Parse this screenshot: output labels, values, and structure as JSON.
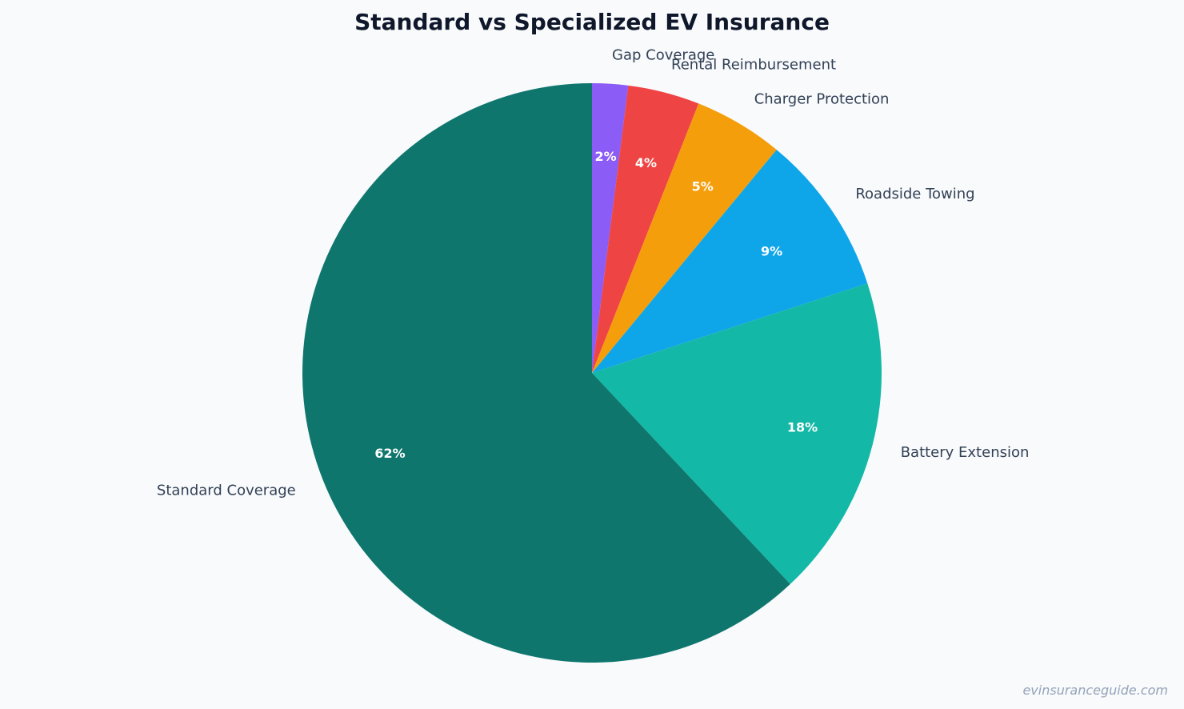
{
  "chart_data": {
    "type": "pie",
    "title": "Standard vs Specialized EV Insurance",
    "start_angle_deg": 90,
    "direction": "clockwise",
    "slices": [
      {
        "label": "Gap Coverage",
        "value": 2,
        "pct_label": "2%",
        "color": "#8b5cf6"
      },
      {
        "label": "Rental Reimbursement",
        "value": 4,
        "pct_label": "4%",
        "color": "#ef4444"
      },
      {
        "label": "Charger Protection",
        "value": 5,
        "pct_label": "5%",
        "color": "#f59e0b"
      },
      {
        "label": "Roadside Towing",
        "value": 9,
        "pct_label": "9%",
        "color": "#0ea5e9"
      },
      {
        "label": "Battery Extension",
        "value": 18,
        "pct_label": "18%",
        "color": "#14b8a6"
      },
      {
        "label": "Standard Coverage",
        "value": 62,
        "pct_label": "62%",
        "color": "#0f766e"
      }
    ]
  },
  "watermark": "evinsuranceguide.com"
}
